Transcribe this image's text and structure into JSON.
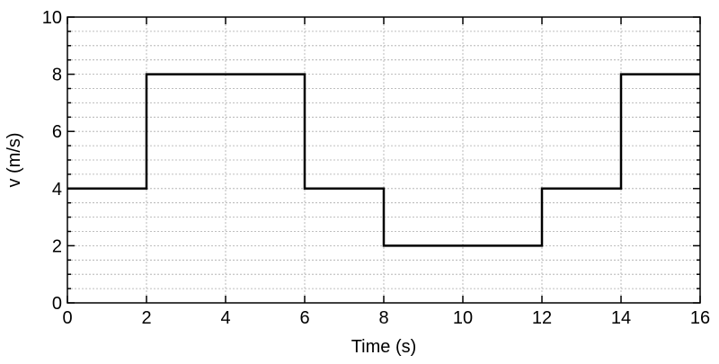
{
  "chart_data": {
    "type": "line",
    "step": true,
    "title": "",
    "xlabel": "Time (s)",
    "ylabel": "v (m/s)",
    "xlim": [
      0,
      16
    ],
    "ylim": [
      0,
      10
    ],
    "xticks": [
      0,
      2,
      4,
      6,
      8,
      10,
      12,
      14,
      16
    ],
    "yticks": [
      0,
      2,
      4,
      6,
      8,
      10
    ],
    "y_minor_step": 0.5,
    "grid": true,
    "line_color": "#000000",
    "series": [
      {
        "x": [
          0,
          2,
          2,
          6,
          6,
          8,
          8,
          12,
          12,
          14,
          14,
          16
        ],
        "y": [
          4,
          4,
          8,
          8,
          4,
          4,
          2,
          2,
          4,
          4,
          8,
          8
        ]
      }
    ]
  }
}
